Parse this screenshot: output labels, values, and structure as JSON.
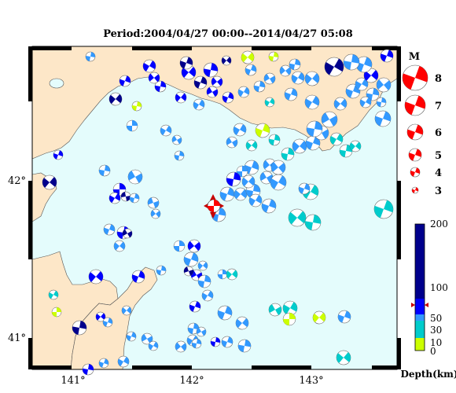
{
  "header": {
    "period": "Period:2004/04/27 00:00--2014/04/27 05:08"
  },
  "map": {
    "lon_labels": [
      "141°",
      "142°",
      "143°"
    ],
    "lat_labels": [
      "42°",
      "41°"
    ],
    "colors": {
      "land": "#fde7c8",
      "sea": "#e4fcfc",
      "main_event": "#ff0000"
    }
  },
  "legend": {
    "magnitude_title": "M",
    "magnitudes": [
      "8",
      "7",
      "6",
      "5",
      "4",
      "3"
    ],
    "depth_title": "Depth(km)",
    "depth_labels": [
      "200",
      "100",
      "50",
      "30",
      "10",
      "0"
    ],
    "depth_colors": [
      "#00008c",
      "#0000ff",
      "#3399ff",
      "#00cccc",
      "#ccff00"
    ]
  }
}
